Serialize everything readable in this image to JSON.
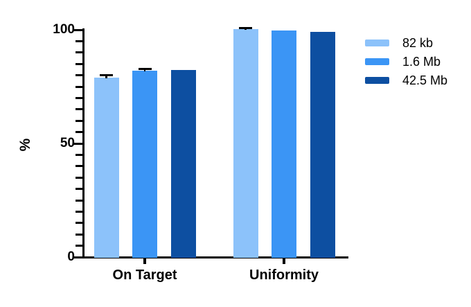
{
  "chart_data": {
    "type": "bar",
    "title": "",
    "ylabel": "%",
    "xlabel": "",
    "ylim": [
      0,
      100
    ],
    "yticks": [
      0,
      50,
      100
    ],
    "minor_tick_step": 5,
    "grid": false,
    "legend_position": "right",
    "categories": [
      "On Target",
      "Uniformity"
    ],
    "series": [
      {
        "name": "82 kb",
        "color": "#8CC2FA",
        "values": [
          78.9,
          100.3
        ],
        "errors": [
          1.2,
          0.4
        ]
      },
      {
        "name": "1.6 Mb",
        "color": "#3B95F5",
        "values": [
          82.0,
          99.6
        ],
        "errors": [
          0.7,
          0
        ]
      },
      {
        "name": "42.5 Mb",
        "color": "#0D4FA1",
        "values": [
          82.2,
          99.0
        ],
        "errors": [
          0,
          0
        ]
      }
    ],
    "error_bar_color": "#000000",
    "axis_color": "#000000"
  }
}
